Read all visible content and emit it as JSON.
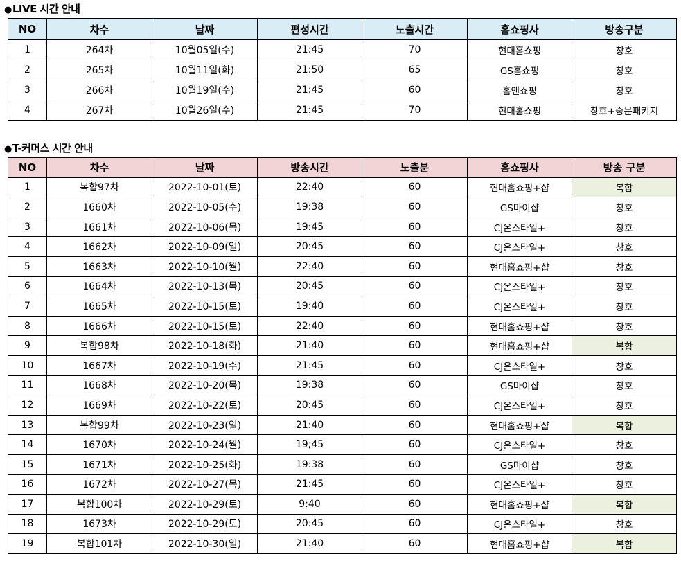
{
  "live_section": {
    "title": "LIVE 시간 안내",
    "headers": [
      "NO",
      "차수",
      "날짜",
      "편성시간",
      "노출시간",
      "홈쇼핑사",
      "방송구분"
    ],
    "rows": [
      {
        "no": "1",
        "cha": "264차",
        "date": "10월05일(수)",
        "time": "21:45",
        "exposure": "70",
        "shop": "현대홈쇼핑",
        "type": "창호"
      },
      {
        "no": "2",
        "cha": "265차",
        "date": "10월11일(화)",
        "time": "21:50",
        "exposure": "65",
        "shop": "GS홈쇼핑",
        "type": "창호"
      },
      {
        "no": "3",
        "cha": "266차",
        "date": "10월19일(수)",
        "time": "21:45",
        "exposure": "60",
        "shop": "홈앤쇼핑",
        "type": "창호"
      },
      {
        "no": "4",
        "cha": "267차",
        "date": "10월26일(수)",
        "time": "21:45",
        "exposure": "70",
        "shop": "현대홈쇼핑",
        "type": "창호+중문패키지"
      }
    ]
  },
  "tcommerce_section": {
    "title": "T-커머스 시간 안내",
    "headers": [
      "NO",
      "차수",
      "날짜",
      "방송시간",
      "노출분",
      "홈쇼핑사",
      "방송 구분"
    ],
    "rows": [
      {
        "no": "1",
        "cha": "복합97차",
        "date": "2022-10-01(토)",
        "time": "22:40",
        "exposure": "60",
        "shop": "현대홈쇼핑+샵",
        "type": "복합"
      },
      {
        "no": "2",
        "cha": "1660차",
        "date": "2022-10-05(수)",
        "time": "19:38",
        "exposure": "60",
        "shop": "GS마이샵",
        "type": "창호"
      },
      {
        "no": "3",
        "cha": "1661차",
        "date": "2022-10-06(목)",
        "time": "19:45",
        "exposure": "60",
        "shop": "CJ온스타일+",
        "type": "창호"
      },
      {
        "no": "4",
        "cha": "1662차",
        "date": "2022-10-09(일)",
        "time": "20:45",
        "exposure": "60",
        "shop": "CJ온스타일+",
        "type": "창호"
      },
      {
        "no": "5",
        "cha": "1663차",
        "date": "2022-10-10(월)",
        "time": "22:40",
        "exposure": "60",
        "shop": "현대홈쇼핑+샵",
        "type": "창호"
      },
      {
        "no": "6",
        "cha": "1664차",
        "date": "2022-10-13(목)",
        "time": "20:45",
        "exposure": "60",
        "shop": "CJ온스타일+",
        "type": "창호"
      },
      {
        "no": "7",
        "cha": "1665차",
        "date": "2022-10-15(토)",
        "time": "19:40",
        "exposure": "60",
        "shop": "CJ온스타일+",
        "type": "창호"
      },
      {
        "no": "8",
        "cha": "1666차",
        "date": "2022-10-15(토)",
        "time": "22:40",
        "exposure": "60",
        "shop": "현대홈쇼핑+샵",
        "type": "창호"
      },
      {
        "no": "9",
        "cha": "복합98차",
        "date": "2022-10-18(화)",
        "time": "21:40",
        "exposure": "60",
        "shop": "현대홈쇼핑+샵",
        "type": "복합"
      },
      {
        "no": "10",
        "cha": "1667차",
        "date": "2022-10-19(수)",
        "time": "21:45",
        "exposure": "60",
        "shop": "CJ온스타일+",
        "type": "창호"
      },
      {
        "no": "11",
        "cha": "1668차",
        "date": "2022-10-20(목)",
        "time": "19:38",
        "exposure": "60",
        "shop": "GS마이샵",
        "type": "창호"
      },
      {
        "no": "12",
        "cha": "1669차",
        "date": "2022-10-22(토)",
        "time": "20:45",
        "exposure": "60",
        "shop": "CJ온스타일+",
        "type": "창호"
      },
      {
        "no": "13",
        "cha": "복합99차",
        "date": "2022-10-23(일)",
        "time": "21:40",
        "exposure": "60",
        "shop": "현대홈쇼핑+샵",
        "type": "복합"
      },
      {
        "no": "14",
        "cha": "1670차",
        "date": "2022-10-24(월)",
        "time": "19;45",
        "exposure": "60",
        "shop": "CJ온스타일+",
        "type": "창호"
      },
      {
        "no": "15",
        "cha": "1671차",
        "date": "2022-10-25(화)",
        "time": "19:38",
        "exposure": "60",
        "shop": "GS마이샵",
        "type": "창호"
      },
      {
        "no": "16",
        "cha": "1672차",
        "date": "2022-10-27(목)",
        "time": "21:45",
        "exposure": "60",
        "shop": "CJ온스타일+",
        "type": "창호"
      },
      {
        "no": "17",
        "cha": "복합100차",
        "date": "2022-10-29(토)",
        "time": "9:40",
        "exposure": "60",
        "shop": "현대홈쇼핑+샵",
        "type": "복합"
      },
      {
        "no": "18",
        "cha": "1673차",
        "date": "2022-10-29(토)",
        "time": "20:45",
        "exposure": "60",
        "shop": "CJ온스타일+",
        "type": "창호"
      },
      {
        "no": "19",
        "cha": "복합101차",
        "date": "2022-10-30(일)",
        "time": "21:40",
        "exposure": "60",
        "shop": "현대홈쇼핑+샵",
        "type": "복합"
      }
    ]
  },
  "colors": {
    "live_header_bg": "#d9edf7",
    "tcommerce_header_bg": "#f2d4d7",
    "bokhap_highlight_bg": "#ebf1de"
  },
  "icons": {
    "bullet": "black-circle-bullet-icon"
  }
}
